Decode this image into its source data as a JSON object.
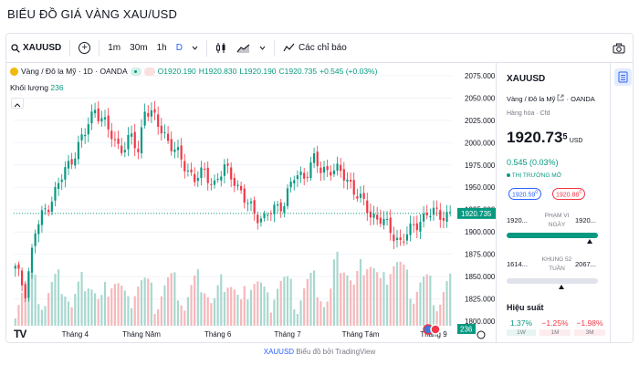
{
  "page": {
    "title": "BIỂU ĐỒ GIÁ VÀNG XAU/USD"
  },
  "toolbar": {
    "symbol": "XAUUSD",
    "add": "+",
    "intervals": [
      "1m",
      "30m",
      "1h",
      "D"
    ],
    "indicators_label": "Các chỉ báo"
  },
  "legend": {
    "name": "Vàng / Đô la Mỹ · 1D · OANDA",
    "o": "O1920.190",
    "h": "H1920.830",
    "l": "L1920.190",
    "c": "C1920.735",
    "change": "+0.545 (+0.03%)",
    "volume_label": "Khối lượng",
    "volume_value": "236"
  },
  "colors": {
    "up": "#089981",
    "down": "#f23645",
    "up_vol": "#a8d8cf",
    "down_vol": "#f6b8bb",
    "accent": "#2962ff"
  },
  "chart_data": {
    "type": "candlestick",
    "y_ticks": [
      1800,
      1825,
      1850,
      1875,
      1900,
      1925,
      1950,
      1975,
      2000,
      2025,
      2050,
      2075
    ],
    "y_tick_labels": [
      "1800.000",
      "1825.000",
      "1850.000",
      "1875.000",
      "1900.000",
      "1925.000",
      "1950.000",
      "1975.000",
      "2000.000",
      "2025.000",
      "2050.000",
      "2075.000"
    ],
    "ylim": [
      1795,
      2083
    ],
    "x_labels": [
      {
        "i": 18,
        "label": "Tháng 4"
      },
      {
        "i": 38,
        "label": "Tháng Năm"
      },
      {
        "i": 61,
        "label": "Tháng 6"
      },
      {
        "i": 82,
        "label": "Tháng 7"
      },
      {
        "i": 104,
        "label": "Tháng Tám"
      },
      {
        "i": 126,
        "label": "Tháng 9"
      }
    ],
    "n": 132,
    "close_anchors": [
      [
        0,
        1858
      ],
      [
        3,
        1835
      ],
      [
        6,
        1900
      ],
      [
        9,
        1925
      ],
      [
        12,
        1945
      ],
      [
        15,
        1968
      ],
      [
        18,
        1990
      ],
      [
        21,
        2010
      ],
      [
        24,
        2040
      ],
      [
        27,
        2020
      ],
      [
        30,
        2000
      ],
      [
        33,
        1995
      ],
      [
        35,
        2005
      ],
      [
        37,
        1990
      ],
      [
        39,
        2040
      ],
      [
        42,
        2025
      ],
      [
        45,
        2010
      ],
      [
        48,
        1990
      ],
      [
        51,
        1975
      ],
      [
        54,
        1960
      ],
      [
        57,
        1965
      ],
      [
        60,
        1955
      ],
      [
        63,
        1970
      ],
      [
        66,
        1960
      ],
      [
        69,
        1935
      ],
      [
        72,
        1922
      ],
      [
        75,
        1915
      ],
      [
        78,
        1925
      ],
      [
        81,
        1935
      ],
      [
        84,
        1960
      ],
      [
        87,
        1965
      ],
      [
        90,
        1980
      ],
      [
        92,
        1968
      ],
      [
        95,
        1972
      ],
      [
        98,
        1965
      ],
      [
        101,
        1955
      ],
      [
        104,
        1935
      ],
      [
        107,
        1920
      ],
      [
        110,
        1915
      ],
      [
        113,
        1900
      ],
      [
        116,
        1890
      ],
      [
        119,
        1900
      ],
      [
        122,
        1915
      ],
      [
        124,
        1920
      ]
    ],
    "last_price": "1920.735",
    "volume_badge": "236",
    "price_line": 1920.735
  },
  "panel": {
    "symbol": "XAUUSD",
    "name": "Vàng / Đô la Mỹ",
    "exchange": "OANDA",
    "category": "Hàng hóa · Cfd",
    "price_main": "1920.73",
    "price_sup": "5",
    "currency": "USD",
    "change": "0.545 (0.03%)",
    "market_status": "THỊ TRƯỜNG MỞ",
    "bid": "1920.59",
    "bid_sup": "0",
    "ask": "1920.88",
    "ask_sup": "0",
    "day_low": "1920...",
    "day_label": "PHẠM VI NGÀY",
    "day_high": "1920...",
    "wk_low": "1614...",
    "wk_label": "KHUNG 52 TUẦN",
    "wk_high": "2067...",
    "perf_title": "Hiệu suất",
    "perf": [
      {
        "value": "1.37%",
        "period": "1W",
        "dir": "up"
      },
      {
        "value": "−1.25%",
        "period": "1M",
        "dir": "down"
      },
      {
        "value": "−1.98%",
        "period": "3M",
        "dir": "down"
      }
    ]
  },
  "credit": {
    "symbol": "XAUUSD",
    "rest": "Biểu đồ bởi TradingView"
  }
}
